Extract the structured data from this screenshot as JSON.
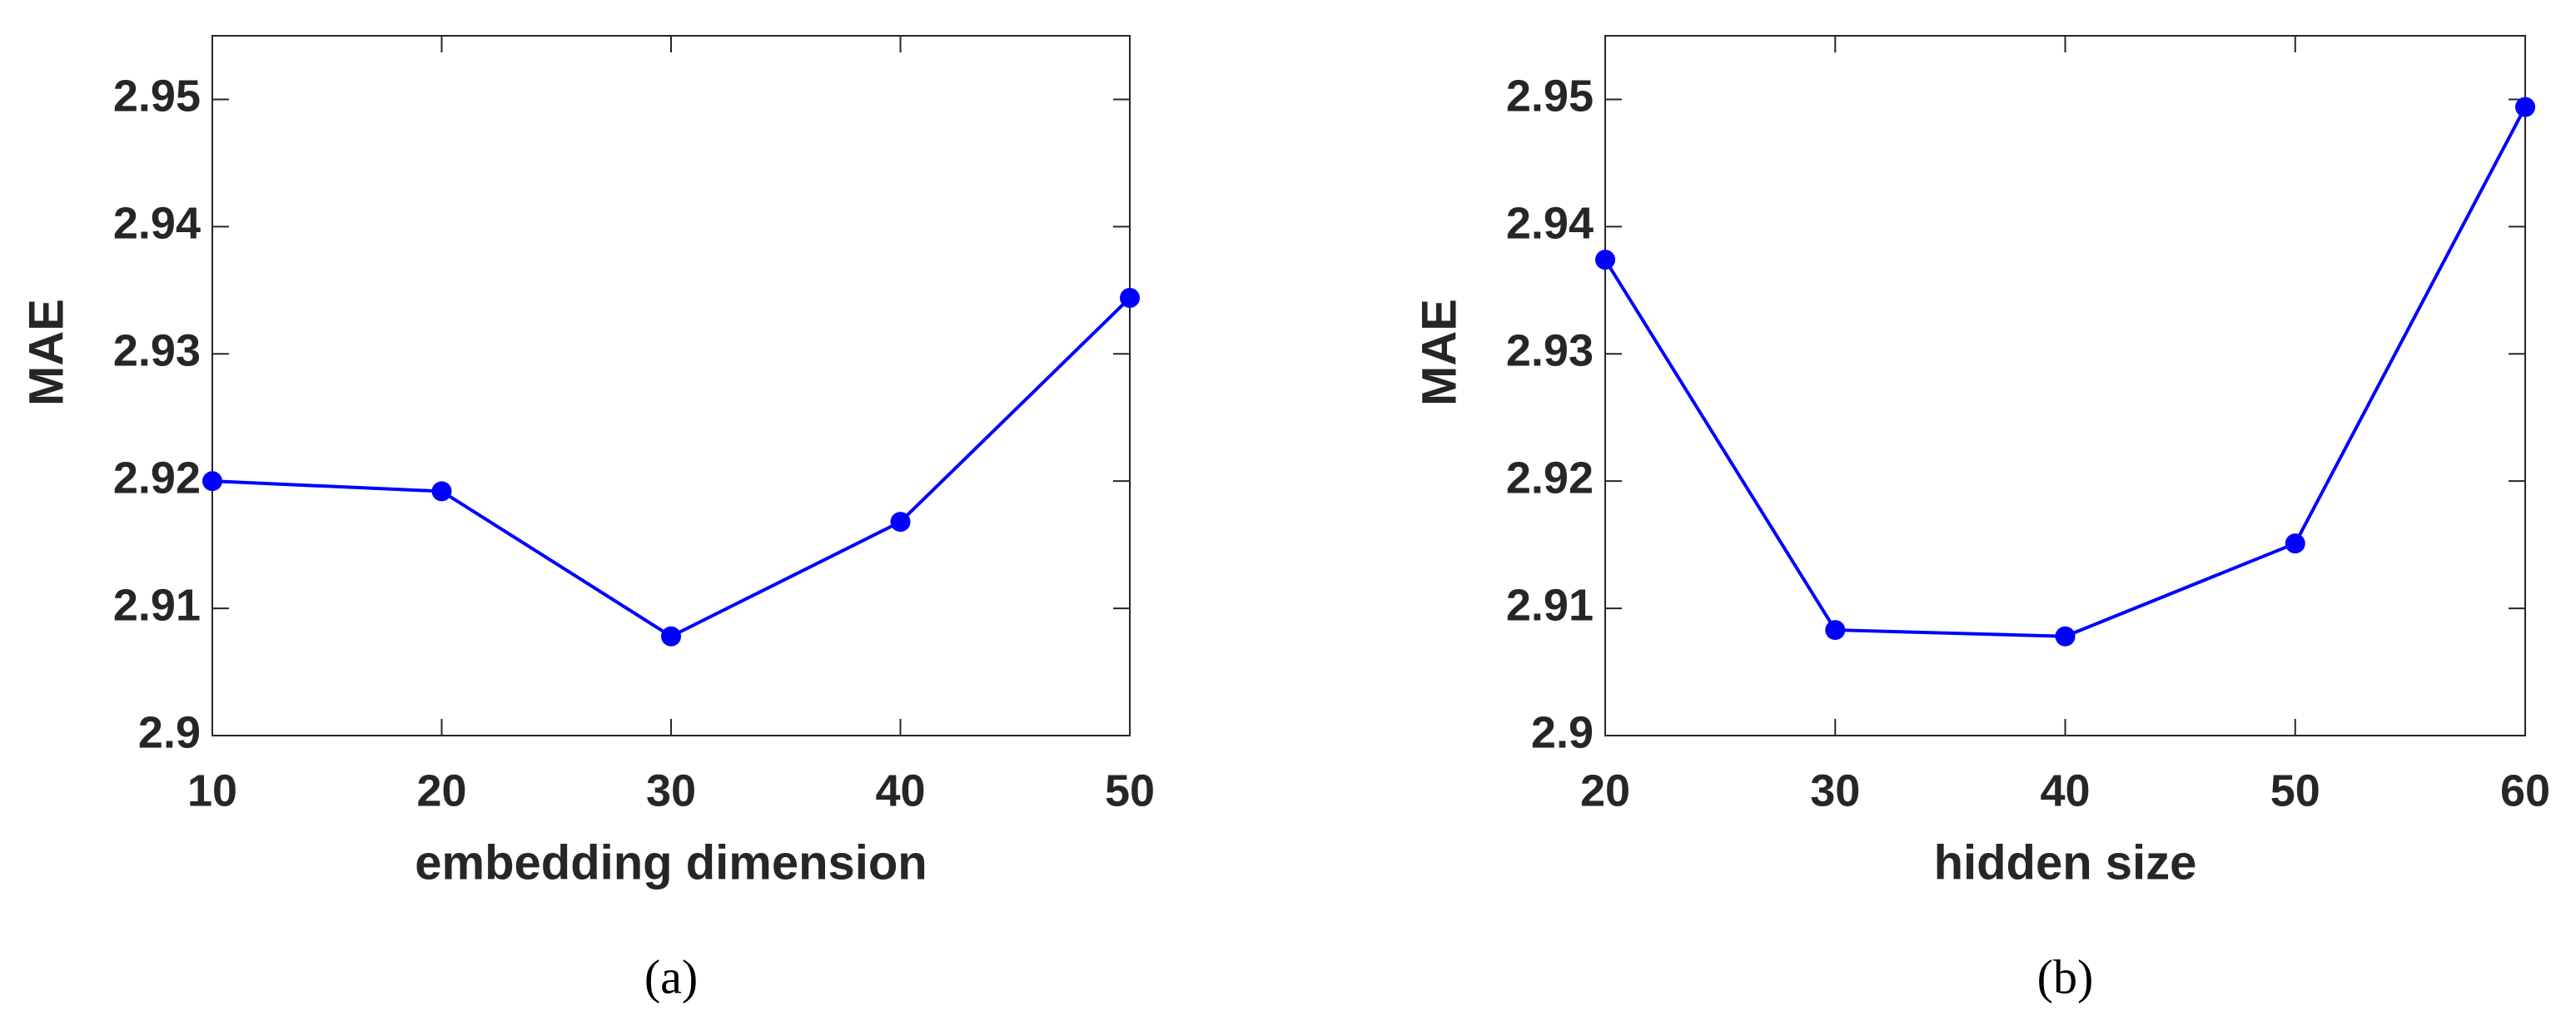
{
  "chart_data": [
    {
      "type": "line",
      "caption": "(a)",
      "xlabel": "embedding dimension",
      "ylabel": "MAE",
      "x": [
        10,
        20,
        30,
        40,
        50
      ],
      "series": [
        {
          "name": "MAE",
          "color": "#0000ff",
          "values": [
            2.92,
            2.9192,
            2.9078,
            2.9168,
            2.9344
          ]
        }
      ],
      "xlim": [
        10,
        50
      ],
      "xticks": [
        10,
        20,
        30,
        40,
        50
      ],
      "ylim": [
        2.9,
        2.955
      ],
      "yticks": [
        2.9,
        2.91,
        2.92,
        2.93,
        2.94,
        2.95
      ]
    },
    {
      "type": "line",
      "caption": "(b)",
      "xlabel": "hidden size",
      "ylabel": "MAE",
      "x": [
        20,
        30,
        40,
        50,
        60
      ],
      "series": [
        {
          "name": "MAE",
          "color": "#0000ff",
          "values": [
            2.9374,
            2.9083,
            2.9078,
            2.9151,
            2.9494
          ]
        }
      ],
      "xlim": [
        20,
        60
      ],
      "xticks": [
        20,
        30,
        40,
        50,
        60
      ],
      "ylim": [
        2.9,
        2.955
      ],
      "yticks": [
        2.9,
        2.91,
        2.92,
        2.93,
        2.94,
        2.95
      ]
    }
  ]
}
